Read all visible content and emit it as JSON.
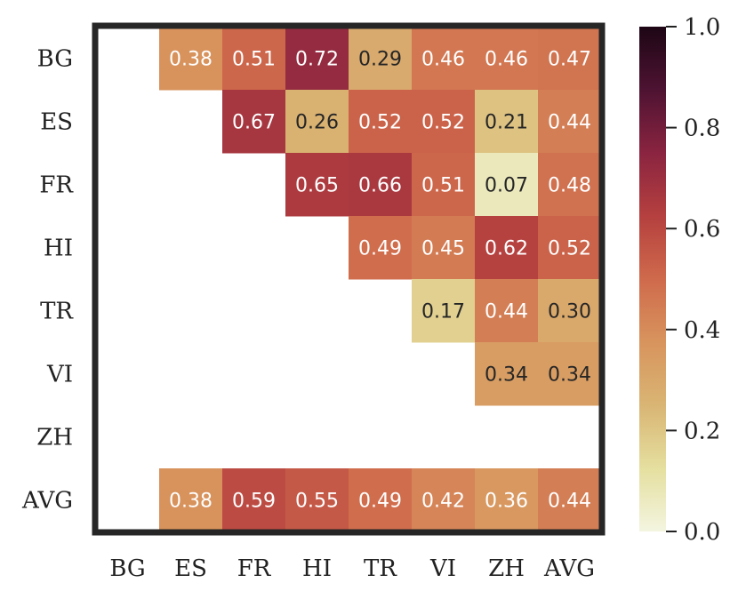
{
  "chart_data": {
    "type": "heatmap",
    "title": "",
    "xlabel": "",
    "ylabel": "",
    "rows": [
      "BG",
      "ES",
      "FR",
      "HI",
      "TR",
      "VI",
      "ZH",
      "AVG"
    ],
    "columns": [
      "BG",
      "ES",
      "FR",
      "HI",
      "TR",
      "VI",
      "ZH",
      "AVG"
    ],
    "values": [
      [
        null,
        0.38,
        0.51,
        0.72,
        0.29,
        0.46,
        0.46,
        0.47
      ],
      [
        null,
        null,
        0.67,
        0.26,
        0.52,
        0.52,
        0.21,
        0.44
      ],
      [
        null,
        null,
        null,
        0.65,
        0.66,
        0.51,
        0.07,
        0.48
      ],
      [
        null,
        null,
        null,
        null,
        0.49,
        0.45,
        0.62,
        0.52
      ],
      [
        null,
        null,
        null,
        null,
        null,
        0.17,
        0.44,
        0.3
      ],
      [
        null,
        null,
        null,
        null,
        null,
        null,
        0.34,
        0.34
      ],
      [
        null,
        null,
        null,
        null,
        null,
        null,
        null,
        null
      ],
      [
        null,
        0.38,
        0.59,
        0.55,
        0.49,
        0.42,
        0.36,
        0.44
      ]
    ],
    "value_format": "0.00",
    "colorbar": {
      "range": [
        0.0,
        1.0
      ],
      "ticks": [
        0.0,
        0.2,
        0.4,
        0.6,
        0.8,
        1.0
      ],
      "tick_labels": [
        "0.0",
        "0.2",
        "0.4",
        "0.6",
        "0.8",
        "1.0"
      ],
      "colormap_stops": [
        "#f3f5e0",
        "#e5df9f",
        "#d9b574",
        "#d8945d",
        "#cf6a4c",
        "#b5403f",
        "#8a2440",
        "#4e1332",
        "#1d0615"
      ]
    },
    "frame_color": "#262626",
    "label_color_light": "#ffffff",
    "label_color_dark": "#262626"
  }
}
